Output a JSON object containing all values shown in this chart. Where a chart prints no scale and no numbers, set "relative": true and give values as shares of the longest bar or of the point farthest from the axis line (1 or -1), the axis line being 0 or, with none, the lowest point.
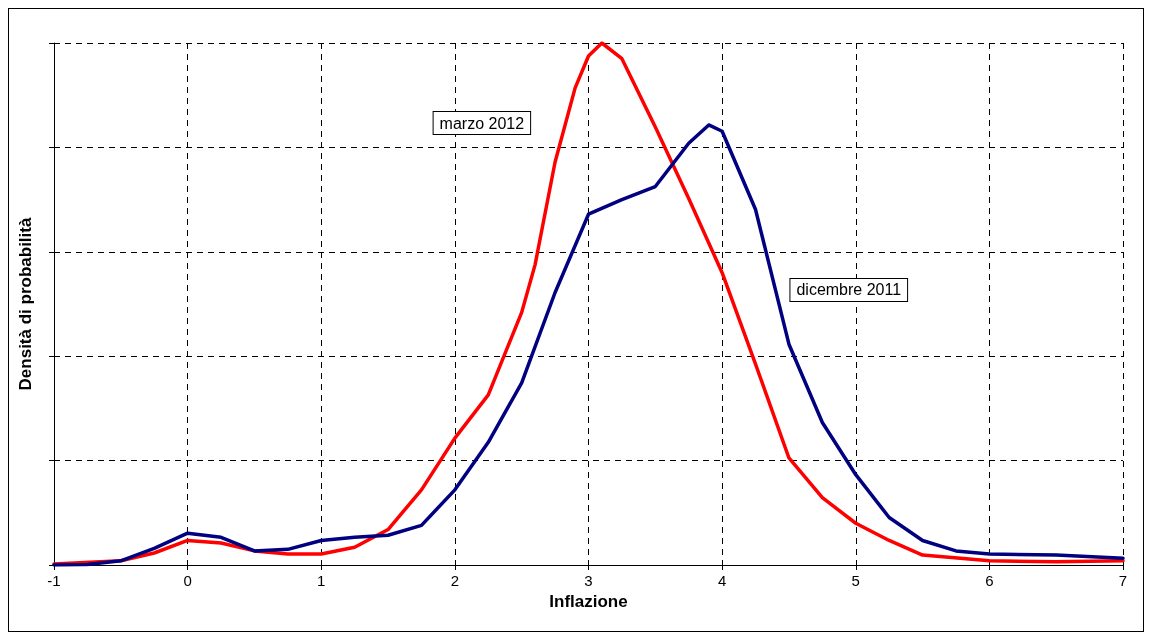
{
  "chart_data": {
    "type": "line",
    "xlabel": "Inflazione",
    "ylabel": "Densità di probabilità",
    "relative": true,
    "grid": true,
    "legend": false,
    "marker": "none",
    "line_style": "solid",
    "xlim": [
      -1,
      7
    ],
    "xticks": [
      -1,
      0,
      1,
      2,
      3,
      4,
      5,
      6,
      7
    ],
    "series": [
      {
        "name": "marzo 2012",
        "color": "#ff0000",
        "x": [
          -1,
          -0.5,
          -0.25,
          0,
          0.25,
          0.5,
          0.75,
          1,
          1.25,
          1.5,
          1.75,
          2,
          2.25,
          2.5,
          2.6,
          2.75,
          2.9,
          3,
          3.1,
          3.25,
          3.5,
          3.75,
          4,
          4.25,
          4.5,
          4.75,
          5,
          5.25,
          5.5,
          6,
          6.5,
          7
        ],
        "values": [
          0.002,
          0.008,
          0.023,
          0.047,
          0.042,
          0.027,
          0.021,
          0.021,
          0.034,
          0.068,
          0.144,
          0.243,
          0.326,
          0.484,
          0.575,
          0.772,
          0.914,
          0.975,
          1,
          0.97,
          0.839,
          0.702,
          0.56,
          0.385,
          0.205,
          0.129,
          0.08,
          0.047,
          0.019,
          0.008,
          0.006,
          0.008
        ]
      },
      {
        "name": "dicembre 2011",
        "color": "#000080",
        "x": [
          -1,
          -0.75,
          -0.5,
          -0.25,
          0,
          0.25,
          0.5,
          0.75,
          1,
          1.25,
          1.5,
          1.75,
          2,
          2.25,
          2.5,
          2.75,
          3,
          3.25,
          3.5,
          3.75,
          3.9,
          4,
          4.25,
          4.5,
          4.75,
          5,
          5.25,
          5.5,
          5.75,
          6,
          6.5,
          7
        ],
        "values": [
          0,
          0.001,
          0.008,
          0.032,
          0.061,
          0.053,
          0.027,
          0.03,
          0.047,
          0.053,
          0.057,
          0.076,
          0.144,
          0.235,
          0.349,
          0.522,
          0.672,
          0.7,
          0.725,
          0.808,
          0.843,
          0.831,
          0.681,
          0.423,
          0.273,
          0.173,
          0.091,
          0.047,
          0.027,
          0.021,
          0.019,
          0.013
        ]
      }
    ]
  }
}
